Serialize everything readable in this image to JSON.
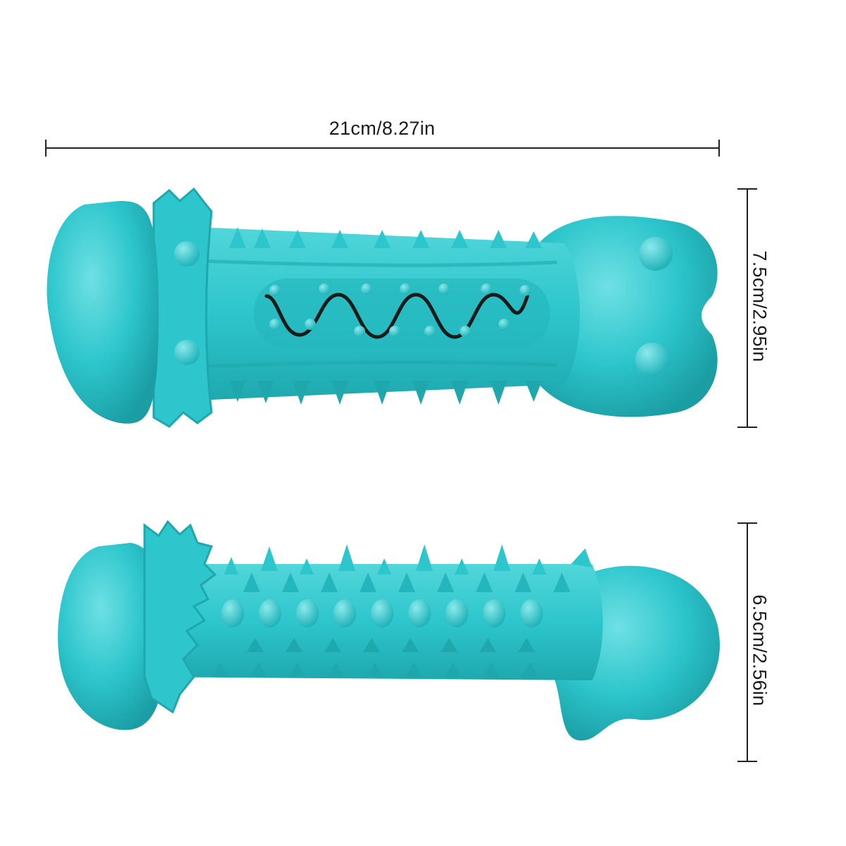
{
  "dimensions": {
    "width_label": "21cm/8.27in",
    "height_top_label": "7.5cm/2.95in",
    "height_bottom_label": "6.5cm/2.56in"
  },
  "colors": {
    "toy": "#2cc6cc",
    "toy_shadow": "#1ea8ae",
    "toy_highlight": "#6fe0e3",
    "line": "#222222",
    "wave": "#1a1a1a"
  }
}
